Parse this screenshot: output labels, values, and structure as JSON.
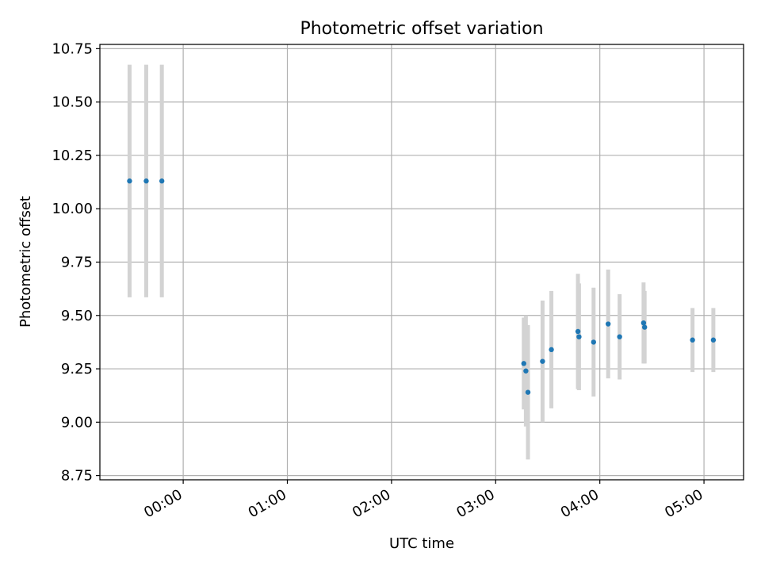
{
  "chart_data": {
    "type": "scatter",
    "title": "Photometric offset variation",
    "xlabel": "UTC time",
    "ylabel": "Photometric offset",
    "xlim": [
      -0.8,
      5.38
    ],
    "ylim": [
      8.73,
      10.77
    ],
    "x_unit": "hours after 00:00 UTC",
    "xticks": [
      0,
      1,
      2,
      3,
      4,
      5
    ],
    "xtick_labels": [
      "00:00",
      "01:00",
      "02:00",
      "03:00",
      "04:00",
      "05:00"
    ],
    "yticks": [
      8.75,
      9.0,
      9.25,
      9.5,
      9.75,
      10.0,
      10.25,
      10.5,
      10.75
    ],
    "ytick_labels": [
      "8.75",
      "9.00",
      "9.25",
      "9.50",
      "9.75",
      "10.00",
      "10.25",
      "10.50",
      "10.75"
    ],
    "grid": true,
    "marker_color": "#1f77b4",
    "errorbar_color": "#d3d3d3",
    "points": [
      {
        "x": -0.515,
        "y": 10.13,
        "err": 0.545
      },
      {
        "x": -0.355,
        "y": 10.13,
        "err": 0.545
      },
      {
        "x": -0.205,
        "y": 10.13,
        "err": 0.545
      },
      {
        "x": 3.27,
        "y": 9.275,
        "err": 0.215
      },
      {
        "x": 3.29,
        "y": 9.24,
        "err": 0.26
      },
      {
        "x": 3.31,
        "y": 9.14,
        "err": 0.315
      },
      {
        "x": 3.45,
        "y": 9.285,
        "err": 0.285
      },
      {
        "x": 3.535,
        "y": 9.34,
        "err": 0.275
      },
      {
        "x": 3.79,
        "y": 9.425,
        "err": 0.27
      },
      {
        "x": 3.8,
        "y": 9.4,
        "err": 0.25
      },
      {
        "x": 3.94,
        "y": 9.375,
        "err": 0.255
      },
      {
        "x": 4.08,
        "y": 9.46,
        "err": 0.255
      },
      {
        "x": 4.19,
        "y": 9.4,
        "err": 0.2
      },
      {
        "x": 4.42,
        "y": 9.465,
        "err": 0.19
      },
      {
        "x": 4.43,
        "y": 9.445,
        "err": 0.17
      },
      {
        "x": 4.89,
        "y": 9.385,
        "err": 0.15
      },
      {
        "x": 5.09,
        "y": 9.385,
        "err": 0.15
      }
    ]
  }
}
